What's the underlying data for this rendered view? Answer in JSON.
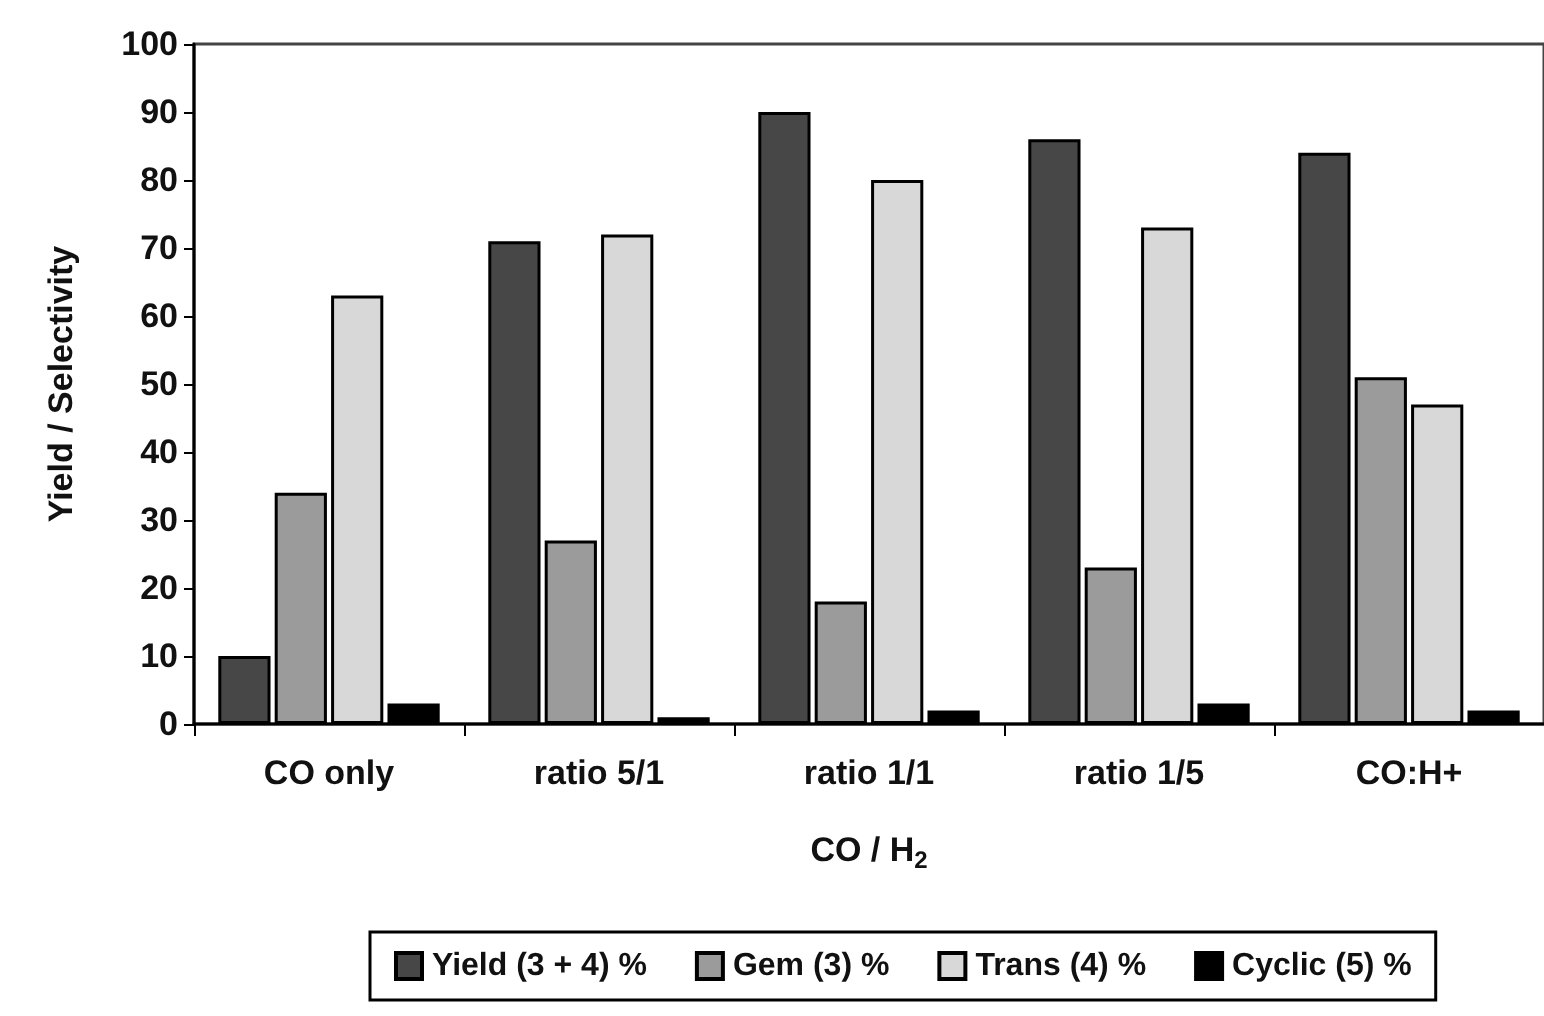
{
  "chart_data": {
    "type": "bar",
    "xlabel": "CO / H$_{2}$",
    "ylabel": "Yield / Selectivity",
    "categories": [
      "CO only",
      "ratio 5/1",
      "ratio 1/1",
      "ratio 1/5",
      "CO:H+"
    ],
    "series": [
      {
        "name": "Yield (3 + 4) %",
        "color": "#474747",
        "values": [
          10,
          71,
          90,
          86,
          84
        ]
      },
      {
        "name": "Gem (3) %",
        "color": "#9b9b9b",
        "values": [
          34,
          27,
          18,
          23,
          51
        ]
      },
      {
        "name": "Trans (4) %",
        "color": "#d8d8d8",
        "values": [
          63,
          72,
          80,
          73,
          47
        ]
      },
      {
        "name": "Cyclic (5) %",
        "color": "#000000",
        "values": [
          3,
          1,
          2,
          3,
          2
        ]
      }
    ],
    "ylim": [
      0,
      100
    ],
    "yticks": [
      0,
      10,
      20,
      30,
      40,
      50,
      60,
      70,
      80,
      90,
      100
    ],
    "grid": false,
    "legend": "bottom"
  }
}
